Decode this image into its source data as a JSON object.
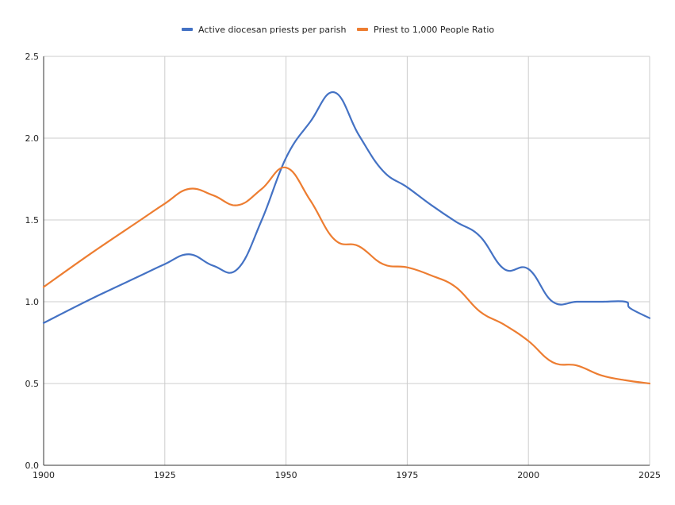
{
  "chart_data": {
    "type": "line",
    "title": "",
    "xlabel": "",
    "ylabel": "",
    "xlim": [
      1900,
      2025
    ],
    "ylim": [
      0,
      2.5
    ],
    "x_ticks": [
      "1900",
      "1925",
      "1950",
      "1975",
      "2000",
      "2025"
    ],
    "y_ticks": [
      "0.0",
      "0.5",
      "1.0",
      "1.5",
      "2.0",
      "2.5"
    ],
    "grid": true,
    "legend_position": "top-center",
    "series": [
      {
        "name": "Active diocesan priests per parish",
        "color": "#4472c4",
        "points": [
          [
            1900,
            0.87
          ],
          [
            1910,
            1.02
          ],
          [
            1920,
            1.16
          ],
          [
            1925,
            1.23
          ],
          [
            1930,
            1.29
          ],
          [
            1935,
            1.22
          ],
          [
            1940,
            1.2
          ],
          [
            1945,
            1.5
          ],
          [
            1950,
            1.88
          ],
          [
            1955,
            2.1
          ],
          [
            1960,
            2.28
          ],
          [
            1965,
            2.02
          ],
          [
            1970,
            1.8
          ],
          [
            1975,
            1.7
          ],
          [
            1980,
            1.59
          ],
          [
            1985,
            1.49
          ],
          [
            1990,
            1.4
          ],
          [
            1995,
            1.2
          ],
          [
            2000,
            1.2
          ],
          [
            2005,
            1.0
          ],
          [
            2010,
            1.0
          ],
          [
            2015,
            1.0
          ],
          [
            2020,
            1.0
          ],
          [
            2021,
            0.96
          ],
          [
            2025,
            0.9
          ]
        ]
      },
      {
        "name": "Priest to 1,000 People Ratio",
        "color": "#ed7d31",
        "points": [
          [
            1900,
            1.09
          ],
          [
            1910,
            1.3
          ],
          [
            1920,
            1.5
          ],
          [
            1925,
            1.6
          ],
          [
            1930,
            1.69
          ],
          [
            1935,
            1.65
          ],
          [
            1940,
            1.59
          ],
          [
            1945,
            1.69
          ],
          [
            1950,
            1.82
          ],
          [
            1955,
            1.62
          ],
          [
            1960,
            1.38
          ],
          [
            1965,
            1.34
          ],
          [
            1970,
            1.23
          ],
          [
            1975,
            1.21
          ],
          [
            1980,
            1.16
          ],
          [
            1985,
            1.09
          ],
          [
            1990,
            0.94
          ],
          [
            1995,
            0.86
          ],
          [
            2000,
            0.76
          ],
          [
            2005,
            0.63
          ],
          [
            2010,
            0.61
          ],
          [
            2015,
            0.55
          ],
          [
            2020,
            0.52
          ],
          [
            2025,
            0.5
          ]
        ]
      }
    ]
  }
}
